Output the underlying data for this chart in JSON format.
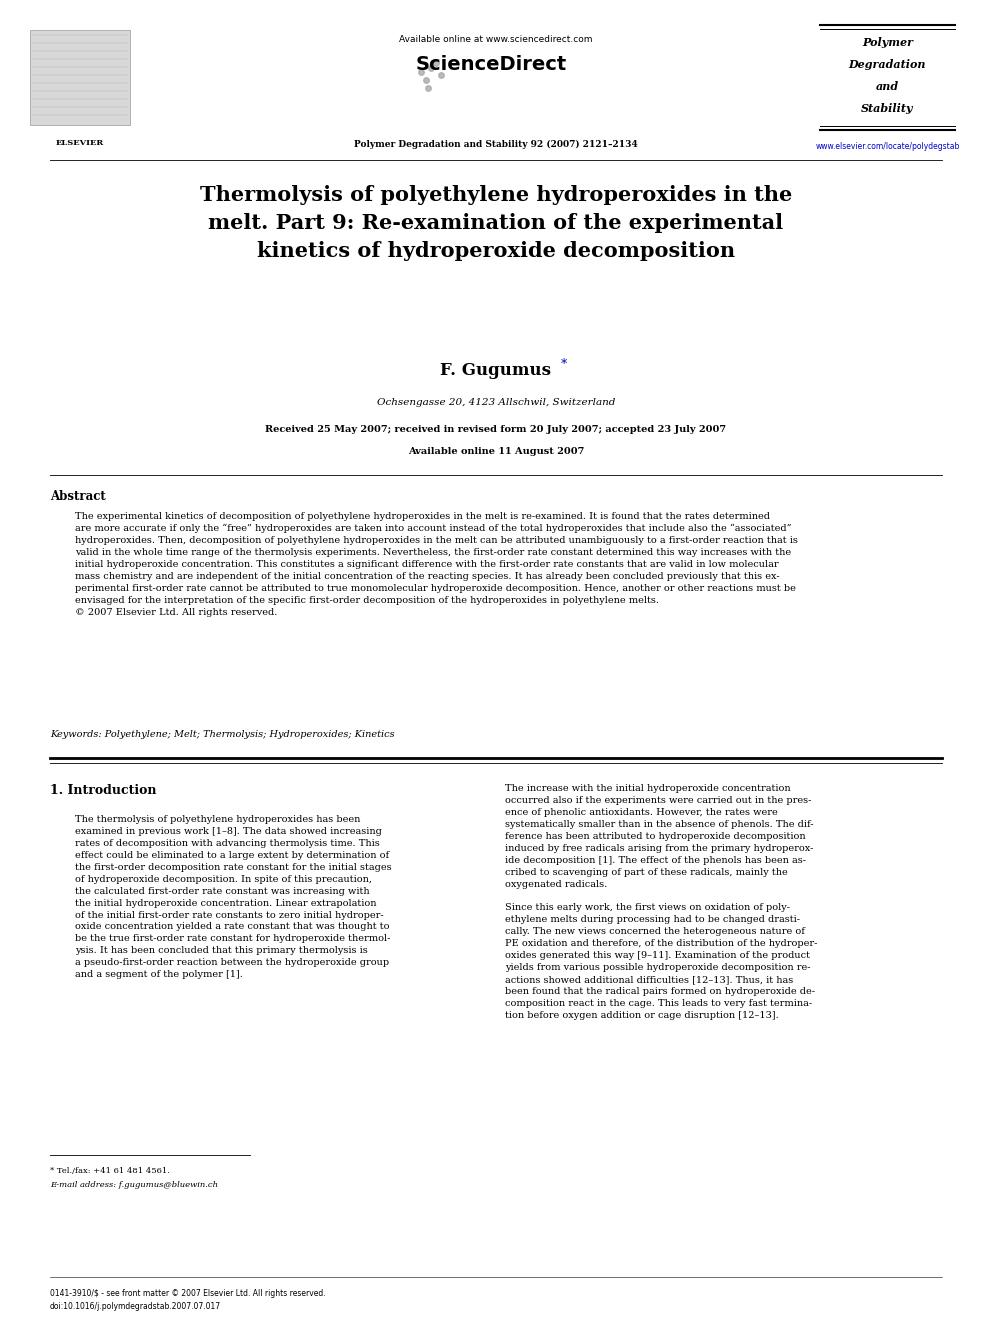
{
  "bg_color": "#ffffff",
  "page_width": 9.92,
  "page_height": 13.23,
  "dpi": 100,
  "header": {
    "available_online": "Available online at www.sciencedirect.com",
    "journal_name_center": "Polymer Degradation and Stability 92 (2007) 2121–2134",
    "journal_name_right_line1": "Polymer",
    "journal_name_right_line2": "Degradation",
    "journal_name_right_line3": "and",
    "journal_name_right_line4": "Stability",
    "url_right": "www.elsevier.com/locate/polydegstab",
    "elsevier_label": "ELSEVIER"
  },
  "title": "Thermolysis of polyethylene hydroperoxides in the\nmelt. Part 9: Re-examination of the experimental\nkinetics of hydroperoxide decomposition",
  "author_name": "F. Gugumus",
  "author_star": "*",
  "address": "Ochsengasse 20, 4123 Allschwil, Switzerland",
  "dates": "Received 25 May 2007; received in revised form 20 July 2007; accepted 23 July 2007",
  "available_online_date": "Available online 11 August 2007",
  "abstract_title": "Abstract",
  "abstract_text": "The experimental kinetics of decomposition of polyethylene hydroperoxides in the melt is re-examined. It is found that the rates determined\nare more accurate if only the “free” hydroperoxides are taken into account instead of the total hydroperoxides that include also the “associated”\nhydroperoxides. Then, decomposition of polyethylene hydroperoxides in the melt can be attributed unambiguously to a first-order reaction that is\nvalid in the whole time range of the thermolysis experiments. Nevertheless, the first-order rate constant determined this way increases with the\ninitial hydroperoxide concentration. This constitutes a significant difference with the first-order rate constants that are valid in low molecular\nmass chemistry and are independent of the initial concentration of the reacting species. It has already been concluded previously that this ex-\nperimental first-order rate cannot be attributed to true monomolecular hydroperoxide decomposition. Hence, another or other reactions must be\nenvisaged for the interpretation of the specific first-order decomposition of the hydroperoxides in polyethylene melts.\n© 2007 Elsevier Ltd. All rights reserved.",
  "keywords": "Keywords: Polyethylene; Melt; Thermolysis; Hydroperoxides; Kinetics",
  "section1_title": "1. Introduction",
  "section1_col1_indent": "The thermolysis of polyethylene hydroperoxides has been\nexamined in previous work [1–8]. The data showed increasing\nrates of decomposition with advancing thermolysis time. This\neffect could be eliminated to a large extent by determination of\nthe first-order decomposition rate constant for the initial stages\nof hydroperoxide decomposition. In spite of this precaution,\nthe calculated first-order rate constant was increasing with\nthe initial hydroperoxide concentration. Linear extrapolation\nof the initial first-order rate constants to zero initial hydroper-\noxide concentration yielded a rate constant that was thought to\nbe the true first-order rate constant for hydroperoxide thermol-\nysis. It has been concluded that this primary thermolysis is\na pseudo-first-order reaction between the hydroperoxide group\nand a segment of the polymer [1].",
  "section1_col2": "The increase with the initial hydroperoxide concentration\noccurred also if the experiments were carried out in the pres-\nence of phenolic antioxidants. However, the rates were\nsystematically smaller than in the absence of phenols. The dif-\nference has been attributed to hydroperoxide decomposition\ninduced by free radicals arising from the primary hydroperox-\nide decomposition [1]. The effect of the phenols has been as-\ncribed to scavenging of part of these radicals, mainly the\noxygenated radicals.\n\nSince this early work, the first views on oxidation of poly-\nethylene melts during processing had to be changed drasti-\ncally. The new views concerned the heterogeneous nature of\nPE oxidation and therefore, of the distribution of the hydroper-\noxides generated this way [9–11]. Examination of the product\nyields from various possible hydroperoxide decomposition re-\nactions showed additional difficulties [12–13]. Thus, it has\nbeen found that the radical pairs formed on hydroperoxide de-\ncomposition react in the cage. This leads to very fast termina-\ntion before oxygen addition or cage disruption [12–13].",
  "footnote_tel": "* Tel./fax: +41 61 481 4561.",
  "footnote_email": "E-mail address: f.gugumus@bluewin.ch",
  "footer_issn": "0141-3910/$ - see front matter © 2007 Elsevier Ltd. All rights reserved.",
  "footer_doi": "doi:10.1016/j.polymdegradstab.2007.07.017"
}
